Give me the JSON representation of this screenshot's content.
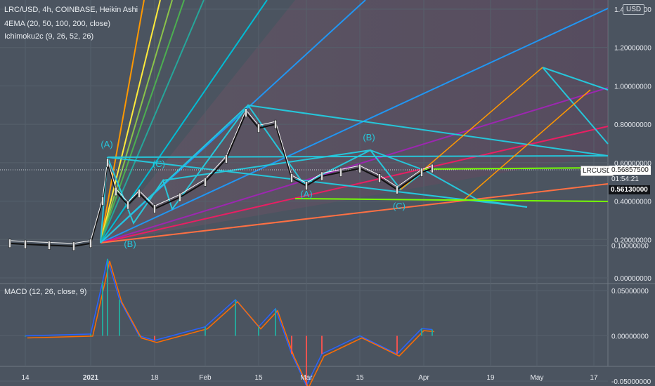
{
  "header": {
    "symbol_line": "LRC/USD, 4h, COINBASE, Heikin Ashi",
    "ema_label": "4EMA (20, 50, 100, 200, close)",
    "ichimoku_label": "Ichimoku2c (9, 26, 52, 26)"
  },
  "macd": {
    "label": "MACD (12, 26, close, 9)"
  },
  "price_axis": {
    "currency": "USD",
    "ticks": [
      "1.40000000",
      "1.20000000",
      "1.00000000",
      "0.80000000",
      "0.60000000",
      "0.40000000",
      "0.20000000",
      "0.00000000"
    ],
    "tick_values": [
      1.4,
      1.2,
      1.0,
      0.8,
      0.6,
      0.4,
      0.2,
      0.0
    ]
  },
  "macd_axis": {
    "ticks": [
      "0.10000000",
      "0.05000000",
      "0.00000000",
      "-0.05000000"
    ],
    "tick_values": [
      0.1,
      0.05,
      0.0,
      -0.05
    ]
  },
  "time_axis": {
    "ticks": [
      "14",
      "2021",
      "18",
      "Feb",
      "15",
      "Mar",
      "15",
      "Apr",
      "19",
      "May",
      "17"
    ]
  },
  "price_labels": {
    "pair_label": "LRCUSD",
    "last_price": "0.56857500",
    "countdown": "01:54:21",
    "prev_close": "0.56130000"
  },
  "wave_labels": [
    "(A)",
    "(C)",
    "(B)",
    "(B)",
    "(A)",
    "(C)"
  ],
  "colors": {
    "background": "#4b5460",
    "cyan": "#26c6da",
    "blue_fan": "#2196f3",
    "orange": "#ff9800",
    "purple": "#9c27b0",
    "pink": "#e91e63",
    "salmon": "#ff7043",
    "lime": "#76ff03",
    "macd_line": "#2962ff",
    "signal_line": "#ff6d00",
    "hist_pos": "#26a69a",
    "hist_neg": "#ef5350"
  },
  "chart_data": [
    {
      "type": "line",
      "title": "LRC/USD, 4h, COINBASE, Heikin Ashi",
      "x": [
        "14",
        "2021",
        "18",
        "Feb",
        "15",
        "Mar",
        "15",
        "Apr",
        "19",
        "May",
        "17"
      ],
      "series": [
        {
          "name": "LRC/USD",
          "points": [
            [
              "Dec 10",
              0.18
            ],
            [
              "Dec 14",
              0.175
            ],
            [
              "Dec 20",
              0.17
            ],
            [
              "Dec 27",
              0.165
            ],
            [
              "2021",
              0.18
            ],
            [
              "Jan 4",
              0.4
            ],
            [
              "Jan 5",
              0.6
            ],
            [
              "Jan 7",
              0.45
            ],
            [
              "Jan 10",
              0.38
            ],
            [
              "Jan 14",
              0.44
            ],
            [
              "Jan 18",
              0.36
            ],
            [
              "Jan 25",
              0.42
            ],
            [
              "Feb 1",
              0.5
            ],
            [
              "Feb 7",
              0.62
            ],
            [
              "Feb 12",
              0.86
            ],
            [
              "Feb 15",
              0.78
            ],
            [
              "Feb 20",
              0.8
            ],
            [
              "Feb 25",
              0.52
            ],
            [
              "Mar 1",
              0.48
            ],
            [
              "Mar 5",
              0.53
            ],
            [
              "Mar 10",
              0.55
            ],
            [
              "Mar 15",
              0.57
            ],
            [
              "Mar 20",
              0.52
            ],
            [
              "Mar 25",
              0.46
            ],
            [
              "Apr 1",
              0.55
            ],
            [
              "Apr 4",
              0.57
            ]
          ]
        }
      ],
      "ylim": [
        0,
        1.45
      ],
      "grid": true
    },
    {
      "type": "bar",
      "title": "MACD (12, 26, close, 9)",
      "series": [
        {
          "name": "MACD",
          "points": [
            [
              "Dec 14",
              0.0
            ],
            [
              "2021",
              0.002
            ],
            [
              "Jan 4",
              0.06
            ],
            [
              "Jan 5",
              0.085
            ],
            [
              "Jan 8",
              0.04
            ],
            [
              "Jan 14",
              0.0
            ],
            [
              "Jan 18",
              -0.005
            ],
            [
              "Feb 1",
              0.01
            ],
            [
              "Feb 10",
              0.04
            ],
            [
              "Feb 15",
              0.01
            ],
            [
              "Feb 20",
              0.03
            ],
            [
              "Feb 25",
              -0.02
            ],
            [
              "Mar 1",
              -0.055
            ],
            [
              "Mar 5",
              -0.02
            ],
            [
              "Mar 15",
              0.0
            ],
            [
              "Mar 25",
              -0.02
            ],
            [
              "Apr 1",
              0.008
            ],
            [
              "Apr 4",
              0.007
            ]
          ]
        }
      ],
      "ylim": [
        -0.06,
        0.11
      ],
      "grid": true
    }
  ]
}
